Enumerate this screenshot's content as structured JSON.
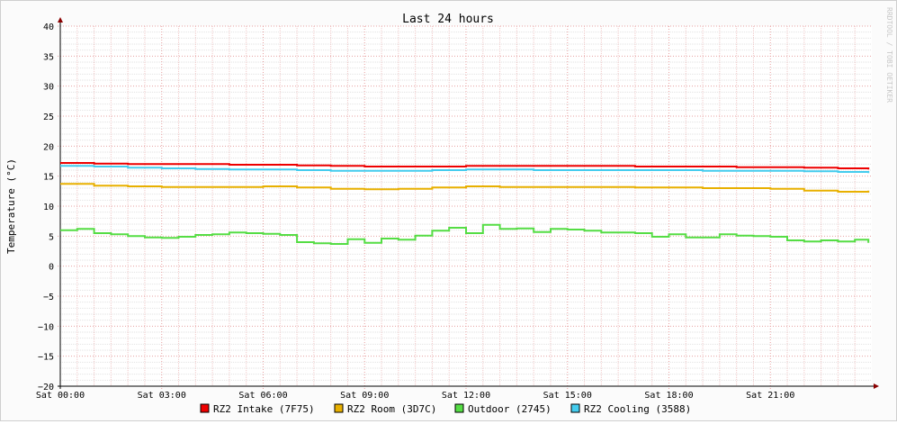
{
  "chart_data": {
    "type": "line",
    "title": "Last 24 hours",
    "ylabel": "Temperature (°C)",
    "watermark": "RRDTOOL / TOBI OETIKER",
    "ylim": [
      -20,
      40
    ],
    "y_ticks": [
      40,
      35,
      30,
      25,
      20,
      15,
      10,
      5,
      0,
      -5,
      -10,
      -15,
      -20
    ],
    "y_tick_labels": [
      "40",
      "35",
      "30",
      "25",
      "20",
      "15",
      "10",
      "5",
      "0",
      "−5",
      "−10",
      "−15",
      "−20"
    ],
    "xlim_hours": [
      0,
      24
    ],
    "x_ticks": [
      0,
      3,
      6,
      9,
      12,
      15,
      18,
      21
    ],
    "x_tick_labels": [
      "Sat 00:00",
      "Sat 03:00",
      "Sat 06:00",
      "Sat 09:00",
      "Sat 12:00",
      "Sat 15:00",
      "Sat 18:00",
      "Sat 21:00"
    ],
    "grid": true,
    "legend_position": "bottom",
    "series": [
      {
        "name": "RZ2 Intake (7F75)",
        "color": "#ee0000",
        "x": [
          0,
          1,
          2,
          3,
          4,
          5,
          6,
          7,
          8,
          9,
          10,
          11,
          12,
          13,
          14,
          15,
          16,
          17,
          18,
          19,
          20,
          21,
          22,
          23,
          23.9
        ],
        "y": [
          17.2,
          17.1,
          17.0,
          17.0,
          17.0,
          16.9,
          16.9,
          16.8,
          16.7,
          16.6,
          16.6,
          16.6,
          16.7,
          16.7,
          16.7,
          16.7,
          16.7,
          16.6,
          16.6,
          16.6,
          16.5,
          16.5,
          16.4,
          16.3,
          16.1
        ]
      },
      {
        "name": "RZ2 Room (3D7C)",
        "color": "#e8b000",
        "x": [
          0,
          1,
          2,
          3,
          4,
          5,
          6,
          7,
          8,
          9,
          10,
          11,
          12,
          13,
          14,
          15,
          16,
          17,
          18,
          19,
          20,
          21,
          22,
          23,
          23.9
        ],
        "y": [
          13.7,
          13.4,
          13.3,
          13.2,
          13.2,
          13.2,
          13.3,
          13.1,
          12.9,
          12.8,
          12.9,
          13.1,
          13.3,
          13.2,
          13.2,
          13.2,
          13.2,
          13.1,
          13.1,
          13.0,
          13.0,
          12.9,
          12.6,
          12.4,
          12.6
        ]
      },
      {
        "name": "Outdoor (2745)",
        "color": "#55dd44",
        "x": [
          0,
          0.5,
          1,
          1.5,
          2,
          2.5,
          3,
          3.5,
          4,
          4.5,
          5,
          5.5,
          6,
          6.5,
          7,
          7.5,
          8,
          8.5,
          9,
          9.5,
          10,
          10.5,
          11,
          11.5,
          12,
          12.5,
          13,
          13.5,
          14,
          14.5,
          15,
          15.5,
          16,
          16.5,
          17,
          17.5,
          18,
          18.5,
          19,
          19.5,
          20,
          20.5,
          21,
          21.5,
          22,
          22.5,
          23,
          23.5,
          23.9
        ],
        "y": [
          6.0,
          6.2,
          5.5,
          5.3,
          5.0,
          4.8,
          4.7,
          4.9,
          5.2,
          5.3,
          5.6,
          5.5,
          5.4,
          5.2,
          4.0,
          3.8,
          3.7,
          4.5,
          3.9,
          4.6,
          4.4,
          5.1,
          5.9,
          6.4,
          5.5,
          6.9,
          6.2,
          6.3,
          5.7,
          6.2,
          6.1,
          5.9,
          5.6,
          5.6,
          5.5,
          4.9,
          5.3,
          4.8,
          4.8,
          5.3,
          5.1,
          5.0,
          4.9,
          4.3,
          4.1,
          4.3,
          4.1,
          4.4,
          3.9
        ]
      },
      {
        "name": "RZ2 Cooling (3588)",
        "color": "#44ccee",
        "x": [
          0,
          1,
          2,
          3,
          4,
          5,
          6,
          7,
          8,
          9,
          10,
          11,
          12,
          13,
          14,
          15,
          16,
          17,
          18,
          19,
          20,
          21,
          22,
          23,
          23.9
        ],
        "y": [
          16.7,
          16.6,
          16.4,
          16.3,
          16.2,
          16.1,
          16.1,
          16.0,
          15.9,
          15.9,
          15.9,
          16.0,
          16.1,
          16.1,
          16.0,
          16.0,
          16.0,
          16.0,
          16.0,
          15.9,
          15.9,
          15.9,
          15.8,
          15.7,
          15.5
        ]
      }
    ]
  }
}
